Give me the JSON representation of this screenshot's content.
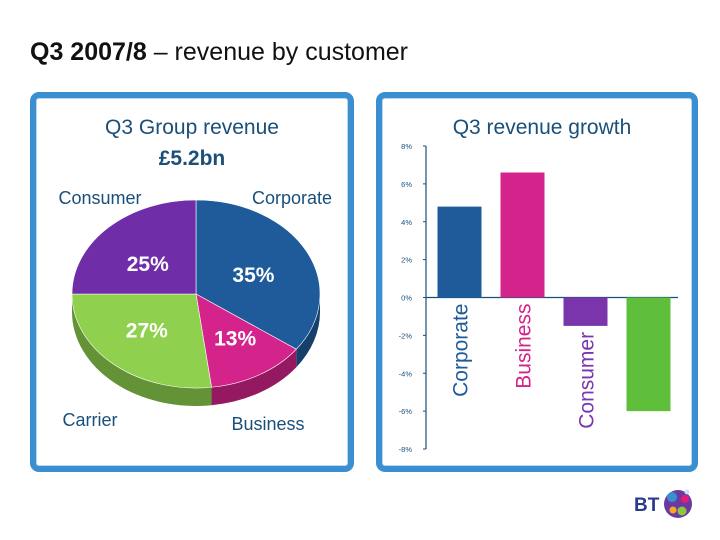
{
  "slide": {
    "title_bold": "Q3 2007/8",
    "title_rest": " – revenue by customer"
  },
  "logo": {
    "text": "BT"
  },
  "chart_data": [
    {
      "type": "pie",
      "title": "Q3 Group revenue",
      "subtitle": "£5.2bn",
      "slices": [
        {
          "label": "Corporate",
          "value": 35,
          "value_label": "35%",
          "color": "#1f5b9a"
        },
        {
          "label": "Business",
          "value": 13,
          "value_label": "13%",
          "color": "#d4238b"
        },
        {
          "label": "Carrier",
          "value": 27,
          "value_label": "27%",
          "color": "#8fd14f"
        },
        {
          "label": "Consumer",
          "value": 25,
          "value_label": "25%",
          "color": "#6f2da8"
        }
      ]
    },
    {
      "type": "bar",
      "title": "Q3 revenue growth",
      "categories": [
        "Corporate",
        "Business",
        "Consumer",
        "Carrier"
      ],
      "values": [
        4.8,
        6.6,
        -1.5,
        -6.0
      ],
      "colors": [
        "#1f5b9a",
        "#d4238b",
        "#7a35ad",
        "#5fbf3a"
      ],
      "ylim": [
        -8,
        8
      ],
      "yticks": [
        "8%",
        "6%",
        "4%",
        "2%",
        "0%",
        "-2%",
        "-4%",
        "-6%",
        "-8%"
      ],
      "grid": false
    }
  ]
}
